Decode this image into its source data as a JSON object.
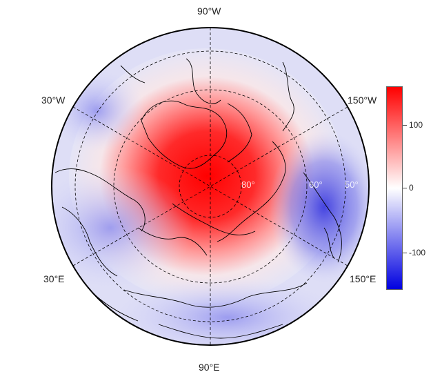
{
  "map": {
    "projection": "north-polar-stereographic",
    "longitude_labels": {
      "top": "90°W",
      "upper_left": "30°W",
      "upper_right": "150°W",
      "lower_left": "30°E",
      "lower_right": "150°E",
      "bottom": "90°E"
    },
    "latitude_labels": [
      "80°",
      "60°",
      "50°"
    ],
    "graticule": "dashed",
    "coastlines": "black"
  },
  "colorbar": {
    "ticks": [
      "100",
      "0",
      "-100"
    ],
    "range": [
      -160,
      160
    ],
    "colors": {
      "high": "#ff0000",
      "mid": "#ffffff",
      "low": "#0000e0"
    }
  }
}
